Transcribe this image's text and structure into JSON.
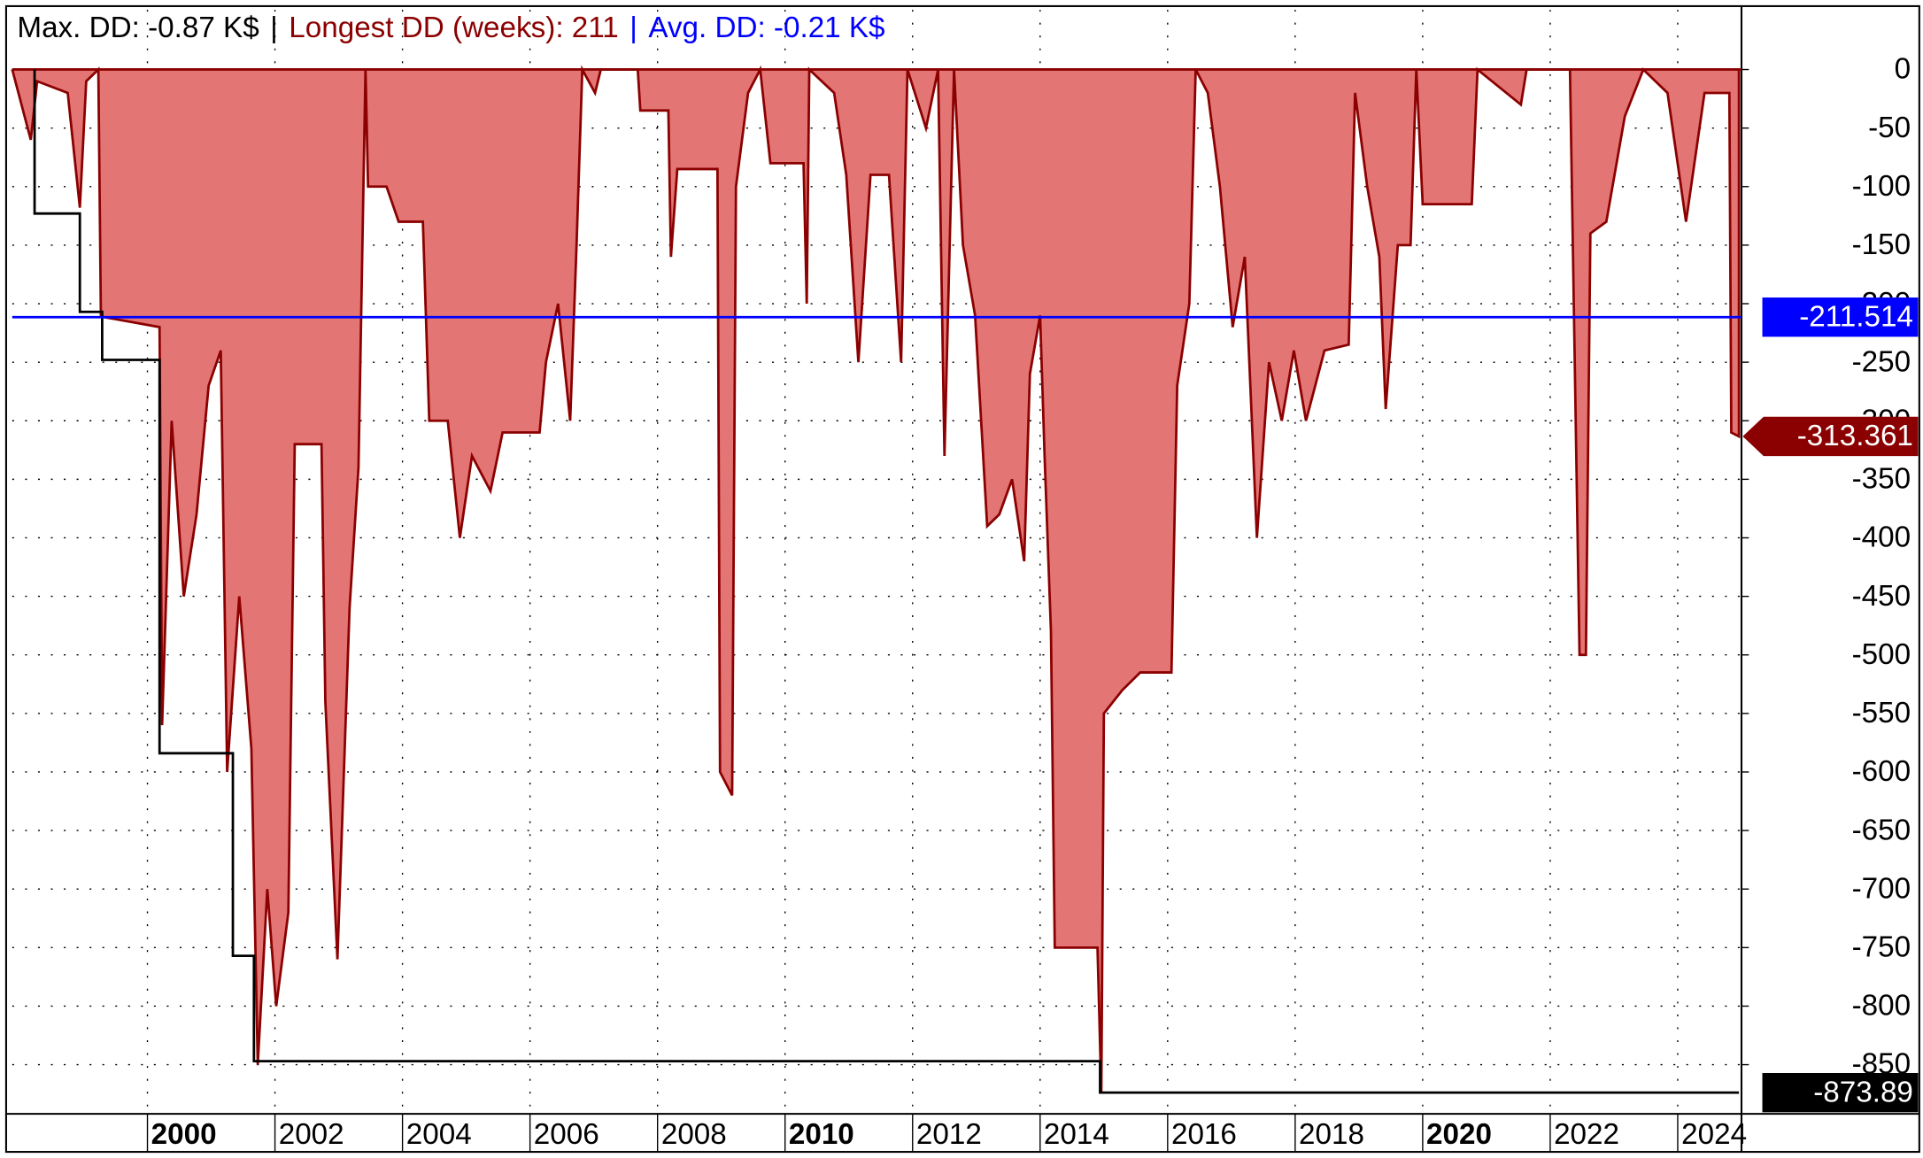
{
  "chart_data": {
    "type": "drawdown",
    "title_parts": [
      {
        "text": "Max. DD: -0.87 K$",
        "color": "#000000"
      },
      {
        "text": "|",
        "color": "#000000"
      },
      {
        "text": "Longest DD (weeks): 211",
        "color": "#8b0000"
      },
      {
        "text": "|",
        "color": "#0000ff"
      },
      {
        "text": "Avg. DD: -0.21 K$",
        "color": "#0000ff"
      }
    ],
    "xlim": [
      1997.88,
      2025.0
    ],
    "ylim": [
      -892,
      51
    ],
    "xticks": [
      2000,
      2002,
      2004,
      2006,
      2008,
      2010,
      2012,
      2014,
      2016,
      2018,
      2020,
      2022,
      2024
    ],
    "major_xtick_every": 10,
    "yticks": [
      0,
      -50,
      -100,
      -150,
      -200,
      -250,
      -300,
      -350,
      -400,
      -450,
      -500,
      -550,
      -600,
      -650,
      -700,
      -750,
      -800,
      -850
    ],
    "grid": true,
    "series": [
      {
        "color": "#8b0000",
        "fill": "#e37674",
        "style": "area",
        "x": [
          1997.88,
          1998.17,
          1998.27,
          1998.75,
          1998.94,
          1999.04,
          1999.23,
          1999.27,
          2000.19,
          2000.23,
          2000.38,
          2000.57,
          2000.77,
          2000.96,
          2001.15,
          2001.25,
          2001.44,
          2001.63,
          2001.73,
          2001.88,
          2002.02,
          2002.21,
          2002.31,
          2002.73,
          2002.79,
          2002.98,
          2003.17,
          2003.31,
          2003.42,
          2003.46,
          2003.75,
          2003.94,
          2004.32,
          2004.42,
          2004.71,
          2004.9,
          2005.09,
          2005.38,
          2005.57,
          2006.15,
          2006.25,
          2006.44,
          2006.63,
          2006.73,
          2006.82,
          2007.02,
          2007.11,
          2007.69,
          2007.73,
          2008.17,
          2008.21,
          2008.31,
          2008.94,
          2008.98,
          2009.17,
          2009.23,
          2009.42,
          2009.61,
          2009.77,
          2010.29,
          2010.34,
          2010.38,
          2010.77,
          2010.96,
          2011.15,
          2011.34,
          2011.63,
          2011.82,
          2011.92,
          2012.21,
          2012.4,
          2012.5,
          2012.65,
          2012.79,
          2012.98,
          2013.17,
          2013.36,
          2013.56,
          2013.75,
          2013.84,
          2014.0,
          2014.07,
          2014.17,
          2014.23,
          2014.9,
          2014.96,
          2015.0,
          2015.29,
          2015.57,
          2016.06,
          2016.15,
          2016.34,
          2016.44,
          2016.63,
          2016.82,
          2017.02,
          2017.21,
          2017.4,
          2017.59,
          2017.79,
          2017.98,
          2018.17,
          2018.46,
          2018.84,
          2018.94,
          2019.13,
          2019.32,
          2019.42,
          2019.61,
          2019.81,
          2019.9,
          2020.0,
          2020.77,
          2020.86,
          2021.54,
          2021.63,
          2022.31,
          2022.46,
          2022.56,
          2022.63,
          2022.88,
          2023.17,
          2023.46,
          2023.84,
          2024.13,
          2024.42,
          2024.81,
          2024.84,
          2024.96
        ],
        "values": [
          0,
          -60,
          -10,
          -20,
          -118,
          -10,
          0,
          -211,
          -220,
          -560,
          -300,
          -450,
          -380,
          -270,
          -240,
          -600,
          -450,
          -580,
          -850,
          -700,
          -800,
          -720,
          -320,
          -320,
          -540,
          -760,
          -460,
          -340,
          0,
          -100,
          -100,
          -130,
          -130,
          -300,
          -300,
          -400,
          -330,
          -360,
          -310,
          -310,
          -250,
          -200,
          -300,
          -150,
          0,
          -20,
          0,
          0,
          -35,
          -35,
          -160,
          -85,
          -85,
          -600,
          -620,
          -100,
          -20,
          0,
          -80,
          -80,
          -200,
          0,
          -20,
          -90,
          -250,
          -90,
          -90,
          -250,
          0,
          -50,
          0,
          -330,
          0,
          -150,
          -210,
          -390,
          -380,
          -350,
          -420,
          -260,
          -210,
          -330,
          -480,
          -750,
          -750,
          -873.89,
          -550,
          -530,
          -515,
          -515,
          -270,
          -200,
          0,
          -20,
          -100,
          -220,
          -160,
          -400,
          -250,
          -300,
          -240,
          -300,
          -240,
          -235,
          -20,
          -100,
          -160,
          -290,
          -150,
          -150,
          0,
          -115,
          -115,
          0,
          -30,
          0,
          0,
          -500,
          -500,
          -140,
          -130,
          -40,
          0,
          -20,
          -130,
          -20,
          -20,
          -310,
          -313.361
        ]
      },
      {
        "color": "#000000",
        "style": "step",
        "x": [
          1998.23,
          1998.94,
          1999.29,
          2000.19,
          2001.34,
          2001.67,
          2014.94,
          2024.96
        ],
        "values": [
          -123,
          -207,
          -248,
          -584,
          -757,
          -847,
          -873.89,
          -873.89
        ]
      }
    ],
    "markers": [
      {
        "value": -211.514,
        "color": "#0000ff",
        "line": true,
        "shape": "box"
      },
      {
        "value": -313.361,
        "color": "#8b0000",
        "line": false,
        "shape": "arrow"
      },
      {
        "value": -873.89,
        "color": "#000000",
        "line": false,
        "shape": "box"
      }
    ]
  }
}
